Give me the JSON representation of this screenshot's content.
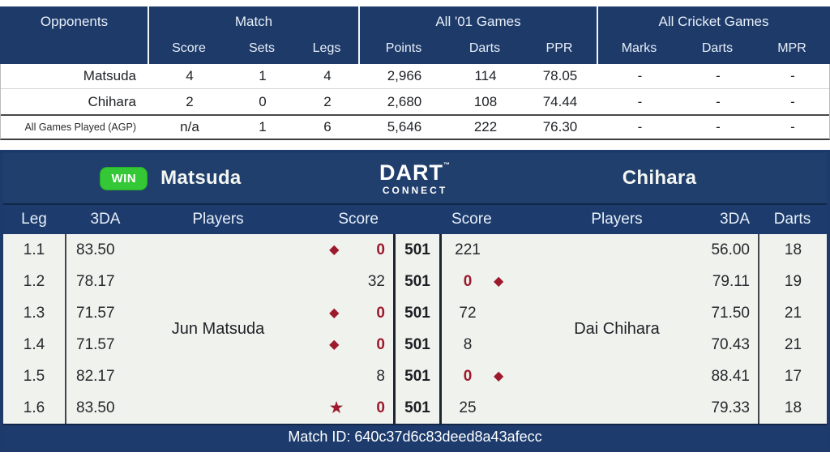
{
  "summary_table": {
    "groups": [
      {
        "label": "Opponents",
        "cols": []
      },
      {
        "label": "Match",
        "cols": [
          "Score",
          "Sets",
          "Legs"
        ]
      },
      {
        "label": "All '01 Games",
        "cols": [
          "Points",
          "Darts",
          "PPR"
        ]
      },
      {
        "label": "All Cricket Games",
        "cols": [
          "Marks",
          "Darts",
          "MPR"
        ]
      }
    ],
    "rows": [
      {
        "name": "Matsuda",
        "agp": false,
        "values": [
          "4",
          "1",
          "4",
          "2,966",
          "114",
          "78.05",
          "-",
          "-",
          "-"
        ]
      },
      {
        "name": "Chihara",
        "agp": false,
        "values": [
          "2",
          "0",
          "2",
          "2,680",
          "108",
          "74.44",
          "-",
          "-",
          "-"
        ]
      },
      {
        "name": "All Games Played (AGP)",
        "agp": true,
        "values": [
          "n/a",
          "1",
          "6",
          "5,646",
          "222",
          "76.30",
          "-",
          "-",
          "-"
        ]
      }
    ]
  },
  "banner": {
    "win_label": "WIN",
    "left_player": "Matsuda",
    "right_player": "Chihara",
    "logo_top": "DART",
    "logo_tm": "™",
    "logo_bottom": "CONNECT"
  },
  "legs_table": {
    "headers": [
      "Leg",
      "3DA",
      "Players",
      "Score",
      "",
      "Score",
      "Players",
      "3DA",
      "Darts"
    ],
    "p1_name": "Jun Matsuda",
    "p2_name": "Dai Chihara",
    "rows": [
      {
        "leg": "1.1",
        "p1_3da": "83.50",
        "p1_icon": "diamond",
        "p1_score": "0",
        "game": "501",
        "p2_score": "221",
        "p2_icon": "",
        "p2_3da": "56.00",
        "darts": "18"
      },
      {
        "leg": "1.2",
        "p1_3da": "78.17",
        "p1_icon": "",
        "p1_score": "32",
        "game": "501",
        "p2_score": "0",
        "p2_icon": "diamond",
        "p2_3da": "79.11",
        "darts": "19"
      },
      {
        "leg": "1.3",
        "p1_3da": "71.57",
        "p1_icon": "diamond",
        "p1_score": "0",
        "game": "501",
        "p2_score": "72",
        "p2_icon": "",
        "p2_3da": "71.50",
        "darts": "21"
      },
      {
        "leg": "1.4",
        "p1_3da": "71.57",
        "p1_icon": "diamond",
        "p1_score": "0",
        "game": "501",
        "p2_score": "8",
        "p2_icon": "",
        "p2_3da": "70.43",
        "darts": "21"
      },
      {
        "leg": "1.5",
        "p1_3da": "82.17",
        "p1_icon": "",
        "p1_score": "8",
        "game": "501",
        "p2_score": "0",
        "p2_icon": "diamond",
        "p2_3da": "88.41",
        "darts": "17"
      },
      {
        "leg": "1.6",
        "p1_3da": "83.50",
        "p1_icon": "star",
        "p1_score": "0",
        "game": "501",
        "p2_score": "25",
        "p2_icon": "",
        "p2_3da": "79.33",
        "darts": "18"
      }
    ]
  },
  "footer": {
    "match_id_label": "Match ID: 640c37d6c83deed8a43afecc"
  },
  "icons": {
    "diamond": "◆",
    "star": "★"
  },
  "colors": {
    "navy_header": "#1e3a69",
    "navy_banner": "#213f6d",
    "win_green": "#34c836",
    "leg_win_red": "#9c1a2c",
    "row_bg": "#f0f2ee"
  }
}
